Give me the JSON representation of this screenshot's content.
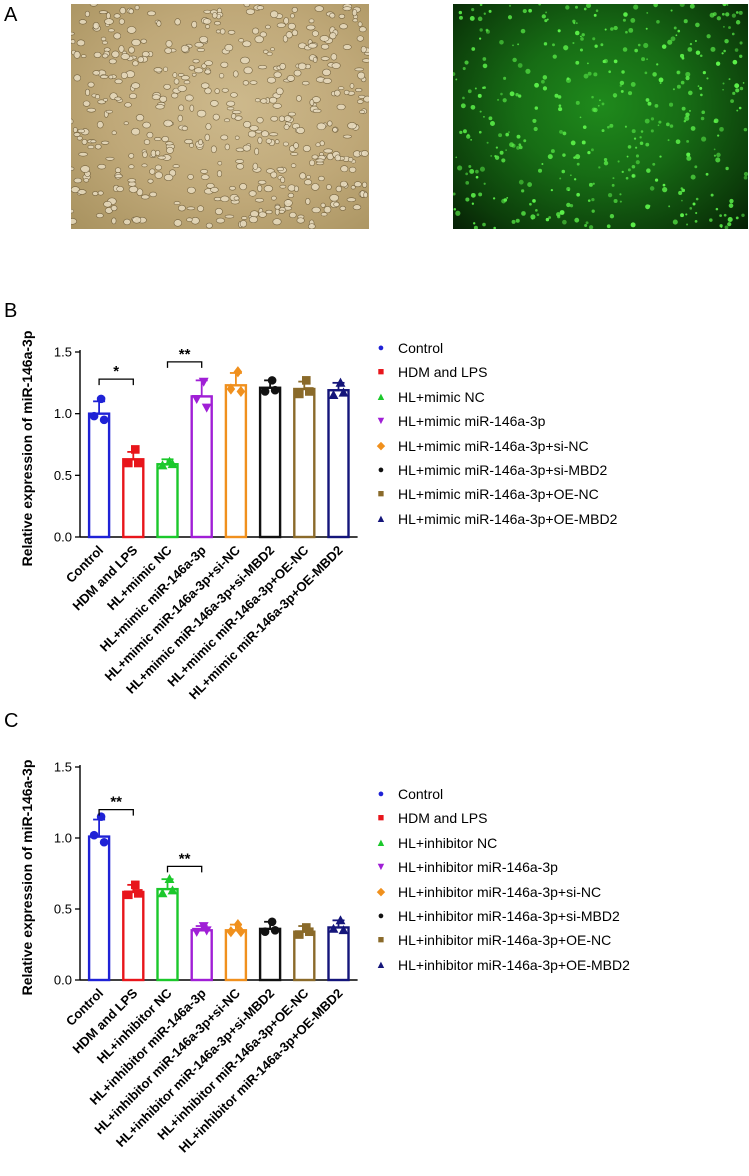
{
  "panels": {
    "a_label": "A",
    "b_label": "B",
    "c_label": "C"
  },
  "micrographs": {
    "brightfield_color": "#c4af82",
    "fluorescence_color": "#1a7a17"
  },
  "chart_data": [
    {
      "id": "B",
      "type": "bar",
      "ylabel": "Relative expression of miR-146a-3p",
      "ylim": [
        0,
        1.5
      ],
      "yticks": [
        "0.0",
        "0.5",
        "1.0",
        "1.5"
      ],
      "categories": [
        "Control",
        "HDM and LPS",
        "HL+mimic NC",
        "HL+mimic miR-146a-3p",
        "HL+mimic miR-146a-3p+si-NC",
        "HL+mimic miR-146a-3p+si-MBD2",
        "HL+mimic miR-146a-3p+OE-NC",
        "HL+mimic miR-146a-3p+OE-MBD2"
      ],
      "values": [
        1.0,
        0.63,
        0.59,
        1.14,
        1.23,
        1.21,
        1.2,
        1.19
      ],
      "errors": [
        0.1,
        0.06,
        0.04,
        0.13,
        0.1,
        0.06,
        0.06,
        0.06
      ],
      "points": [
        [
          1.12,
          0.98,
          0.95
        ],
        [
          0.71,
          0.6,
          0.6
        ],
        [
          0.61,
          0.58,
          0.59
        ],
        [
          1.26,
          1.12,
          1.05
        ],
        [
          1.34,
          1.2,
          1.18
        ],
        [
          1.27,
          1.18,
          1.19
        ],
        [
          1.27,
          1.16,
          1.18
        ],
        [
          1.25,
          1.15,
          1.17
        ]
      ],
      "colors": [
        "#1f22d6",
        "#e8151b",
        "#1bc82b",
        "#a01fd6",
        "#f0901d",
        "#111111",
        "#8a6a2a",
        "#14157a"
      ],
      "markers": [
        "circle",
        "square",
        "triangle-up",
        "triangle-down",
        "diamond",
        "circle",
        "square",
        "triangle-up"
      ],
      "significance": [
        {
          "from": 0,
          "to": 1,
          "label": "*",
          "y": 1.28
        },
        {
          "from": 2,
          "to": 3,
          "label": "**",
          "y": 1.42
        }
      ],
      "legend": [
        "Control",
        "HDM and LPS",
        "HL+mimic NC",
        "HL+mimic miR-146a-3p",
        "HL+mimic miR-146a-3p+si-NC",
        "HL+mimic miR-146a-3p+si-MBD2",
        "HL+mimic miR-146a-3p+OE-NC",
        "HL+mimic miR-146a-3p+OE-MBD2"
      ]
    },
    {
      "id": "C",
      "type": "bar",
      "ylabel": "Relative expression of miR-146a-3p",
      "ylim": [
        0,
        1.5
      ],
      "yticks": [
        "0.0",
        "0.5",
        "1.0",
        "1.5"
      ],
      "categories": [
        "Control",
        "HDM and LPS",
        "HL+inhibitor NC",
        "HL+inhibitor miR-146a-3p",
        "HL+inhibitor miR-146a-3p+si-NC",
        "HL+inhibitor miR-146a-3p+si-MBD2",
        "HL+inhibitor miR-146a-3p+OE-NC",
        "HL+inhibitor miR-146a-3p+OE-MBD2"
      ],
      "values": [
        1.01,
        0.62,
        0.64,
        0.35,
        0.35,
        0.36,
        0.34,
        0.37
      ],
      "errors": [
        0.12,
        0.05,
        0.07,
        0.03,
        0.04,
        0.05,
        0.04,
        0.05
      ],
      "points": [
        [
          1.15,
          1.02,
          0.97
        ],
        [
          0.67,
          0.6,
          0.61
        ],
        [
          0.71,
          0.61,
          0.63
        ],
        [
          0.38,
          0.34,
          0.35
        ],
        [
          0.39,
          0.34,
          0.34
        ],
        [
          0.41,
          0.34,
          0.35
        ],
        [
          0.37,
          0.32,
          0.34
        ],
        [
          0.42,
          0.36,
          0.35
        ]
      ],
      "colors": [
        "#1f22d6",
        "#e8151b",
        "#1bc82b",
        "#a01fd6",
        "#f0901d",
        "#111111",
        "#8a6a2a",
        "#14157a"
      ],
      "markers": [
        "circle",
        "square",
        "triangle-up",
        "triangle-down",
        "diamond",
        "circle",
        "square",
        "triangle-up"
      ],
      "significance": [
        {
          "from": 0,
          "to": 1,
          "label": "**",
          "y": 1.2
        },
        {
          "from": 2,
          "to": 3,
          "label": "**",
          "y": 0.8
        }
      ],
      "legend": [
        "Control",
        "HDM and LPS",
        "HL+inhibitor NC",
        "HL+inhibitor miR-146a-3p",
        "HL+inhibitor miR-146a-3p+si-NC",
        "HL+inhibitor miR-146a-3p+si-MBD2",
        "HL+inhibitor miR-146a-3p+OE-NC",
        "HL+inhibitor miR-146a-3p+OE-MBD2"
      ]
    }
  ]
}
